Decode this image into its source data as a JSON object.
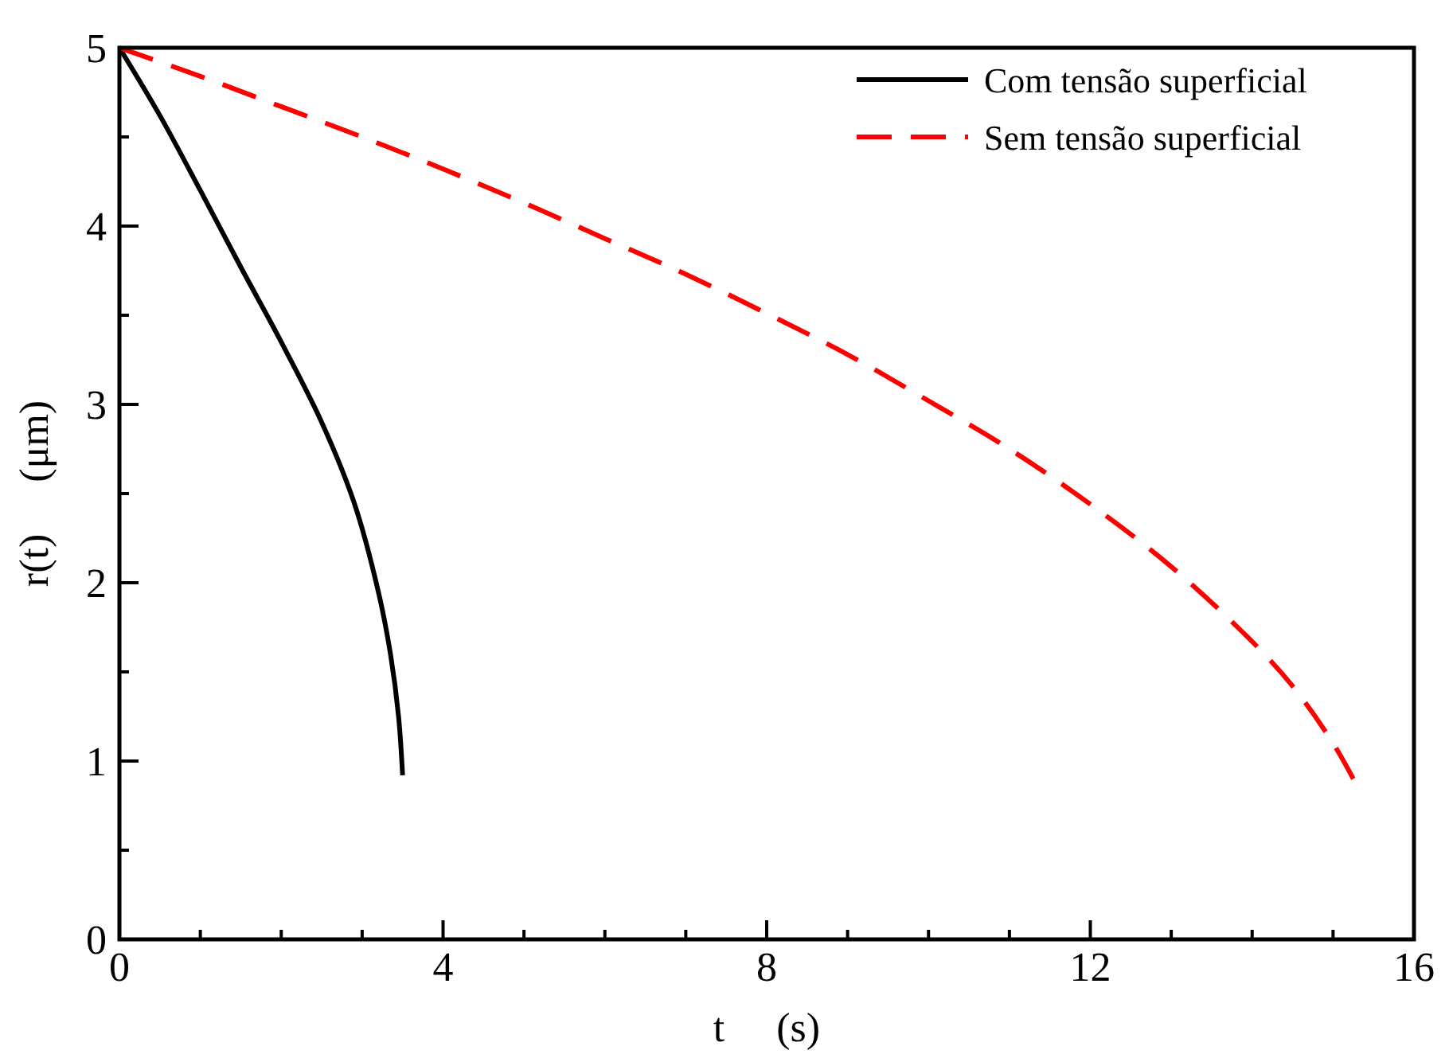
{
  "chart_data": {
    "type": "line",
    "xlabel": "t     (s)",
    "ylabel": "r(t)     (μm)",
    "xlim": [
      0,
      16
    ],
    "ylim": [
      0,
      5
    ],
    "xticks": [
      0,
      {
        "value": 1,
        "label": null
      },
      {
        "value": 2,
        "label": null
      },
      {
        "value": 3,
        "label": null
      },
      4,
      {
        "value": 5,
        "label": null
      },
      {
        "value": 6,
        "label": null
      },
      {
        "value": 7,
        "label": null
      },
      8,
      {
        "value": 9,
        "label": null
      },
      {
        "value": 10,
        "label": null
      },
      {
        "value": 11,
        "label": null
      },
      12,
      {
        "value": 13,
        "label": null
      },
      {
        "value": 14,
        "label": null
      },
      {
        "value": 15,
        "label": null
      },
      16
    ],
    "yticks": [
      0,
      {
        "value": 0.5,
        "label": null
      },
      1,
      {
        "value": 1.5,
        "label": null
      },
      2,
      {
        "value": 2.5,
        "label": null
      },
      3,
      {
        "value": 3.5,
        "label": null
      },
      4,
      {
        "value": 4.5,
        "label": null
      },
      5
    ],
    "legend": "top right",
    "grid": false,
    "series": [
      {
        "name": "Com tensão superficial",
        "color": "#000000",
        "line_style": "solid",
        "x": [
          0,
          0.5,
          1,
          1.5,
          2,
          2.5,
          2.9,
          3.2,
          3.35,
          3.45,
          3.5
        ],
        "values": [
          5,
          4.62,
          4.2,
          3.77,
          3.35,
          2.9,
          2.45,
          1.95,
          1.6,
          1.25,
          0.92
        ]
      },
      {
        "name": "Sem tensão superficial",
        "color": "#ff0000",
        "line_style": "dashed",
        "x": [
          0,
          1,
          2,
          3,
          4,
          5,
          6,
          7,
          8,
          9,
          10,
          11,
          12,
          13,
          14,
          14.5,
          15,
          15.25
        ],
        "values": [
          5,
          4.84,
          4.67,
          4.5,
          4.32,
          4.13,
          3.93,
          3.73,
          3.51,
          3.28,
          3.02,
          2.75,
          2.44,
          2.09,
          1.67,
          1.42,
          1.1,
          0.9
        ]
      }
    ]
  }
}
